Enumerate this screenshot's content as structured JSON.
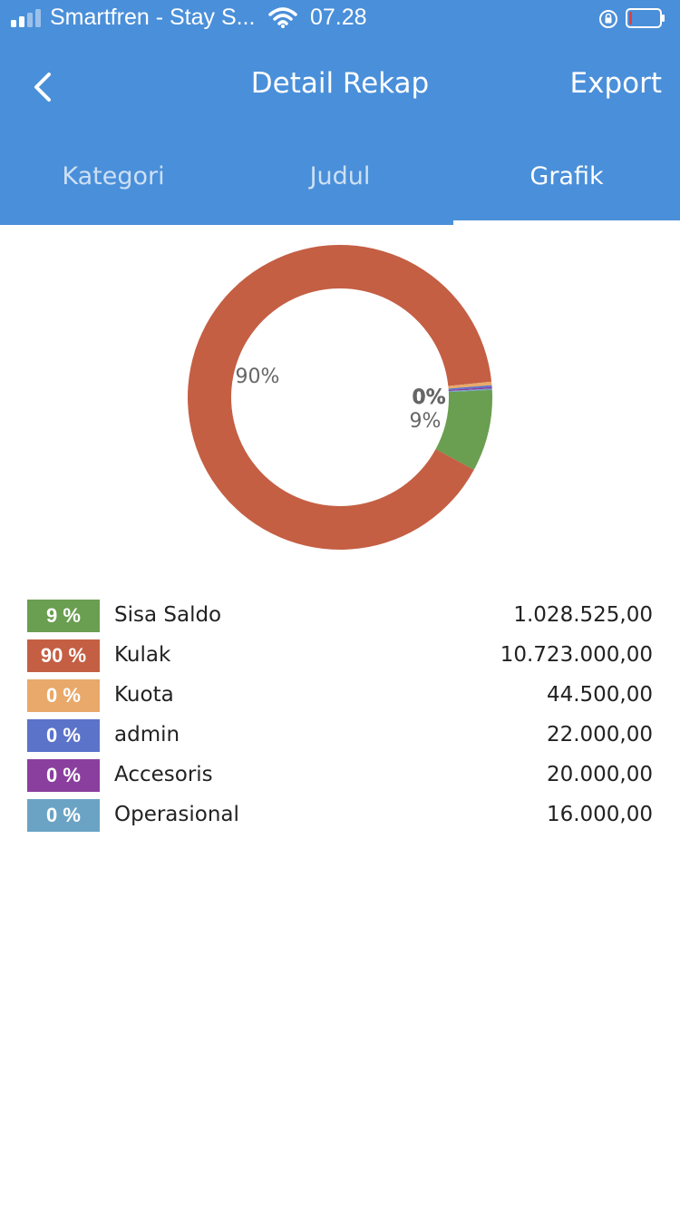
{
  "status_bar": {
    "carrier": "Smartfren - Stay S...",
    "time": "07.28"
  },
  "nav": {
    "title": "Detail Rekap",
    "export_label": "Export"
  },
  "tabs": [
    {
      "label": "Kategori",
      "active": false
    },
    {
      "label": "Judul",
      "active": false
    },
    {
      "label": "Grafik",
      "active": true
    }
  ],
  "chart_data": {
    "type": "pie",
    "donut": true,
    "categories": [
      "Sisa Saldo",
      "Kulak",
      "Kuota",
      "admin",
      "Accesoris",
      "Operasional"
    ],
    "values": [
      1028525,
      10723000,
      44500,
      22000,
      20000,
      16000
    ],
    "colors": [
      "#6A9E50",
      "#C45F44",
      "#E8A96A",
      "#5B73C9",
      "#8A3F9E",
      "#6BA3C4"
    ],
    "slice_labels": [
      "9%",
      "90%",
      "0%",
      "0%",
      "0%",
      "0%"
    ]
  },
  "legend": [
    {
      "pct": "9 %",
      "name": "Sisa Saldo",
      "amount": "1.028.525,00",
      "color": "#6A9E50"
    },
    {
      "pct": "90 %",
      "name": "Kulak",
      "amount": "10.723.000,00",
      "color": "#C45F44"
    },
    {
      "pct": "0 %",
      "name": "Kuota",
      "amount": "44.500,00",
      "color": "#E8A96A"
    },
    {
      "pct": "0 %",
      "name": "admin",
      "amount": "22.000,00",
      "color": "#5B73C9"
    },
    {
      "pct": "0 %",
      "name": "Accesoris",
      "amount": "20.000,00",
      "color": "#8A3F9E"
    },
    {
      "pct": "0 %",
      "name": "Operasional",
      "amount": "16.000,00",
      "color": "#6BA3C4"
    }
  ]
}
